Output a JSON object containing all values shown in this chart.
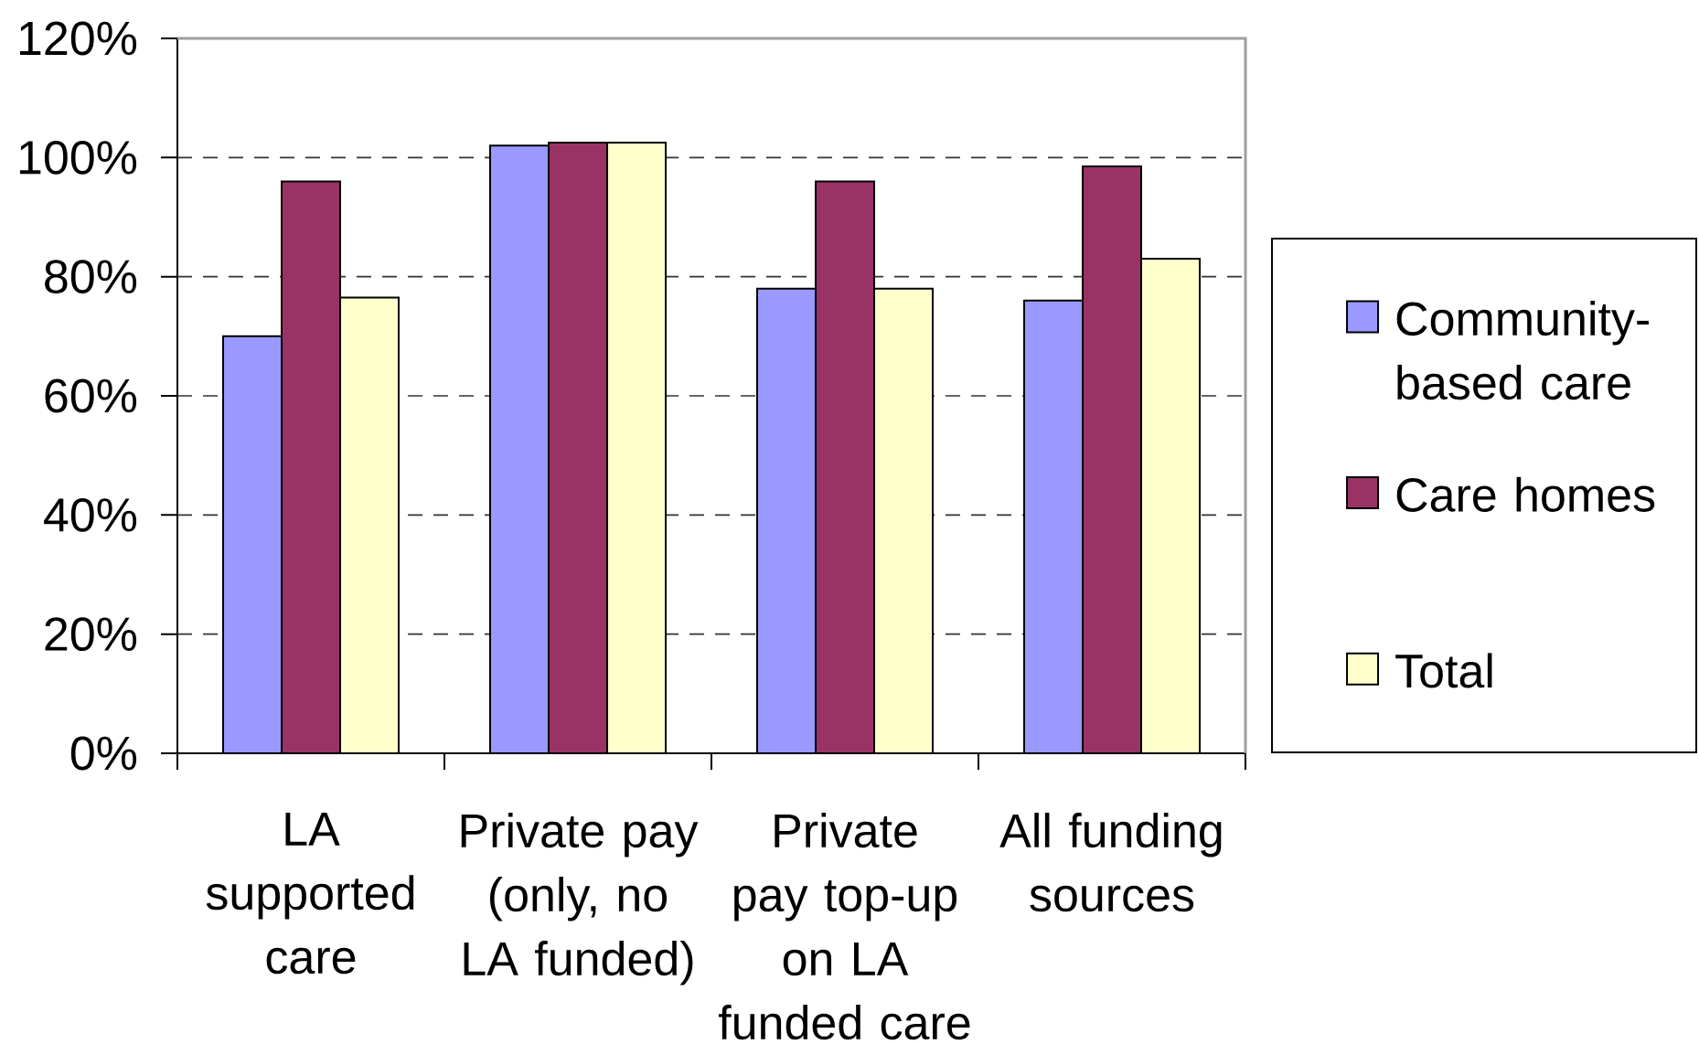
{
  "chart_data": {
    "type": "bar",
    "categories": [
      "LA supported care",
      "Private pay (only, no LA funded)",
      "Private pay top-up on LA funded care",
      "All funding sources"
    ],
    "series": [
      {
        "name": "Community-based care",
        "color": "#9999ff",
        "values": [
          70,
          102,
          78,
          76
        ]
      },
      {
        "name": "Care homes",
        "color": "#993366",
        "values": [
          96,
          102.5,
          96,
          98.5
        ]
      },
      {
        "name": "Total",
        "color": "#ffffcc",
        "values": [
          76.5,
          102.5,
          78,
          83
        ]
      }
    ],
    "ylim": [
      0,
      120
    ],
    "yticks": [
      {
        "value": 0,
        "label": "0%"
      },
      {
        "value": 20,
        "label": "20%"
      },
      {
        "value": 40,
        "label": "40%"
      },
      {
        "value": 60,
        "label": "60%"
      },
      {
        "value": 80,
        "label": "80%"
      },
      {
        "value": 100,
        "label": "100%"
      },
      {
        "value": 120,
        "label": "120%"
      }
    ],
    "grid": "y",
    "legend": "right"
  }
}
